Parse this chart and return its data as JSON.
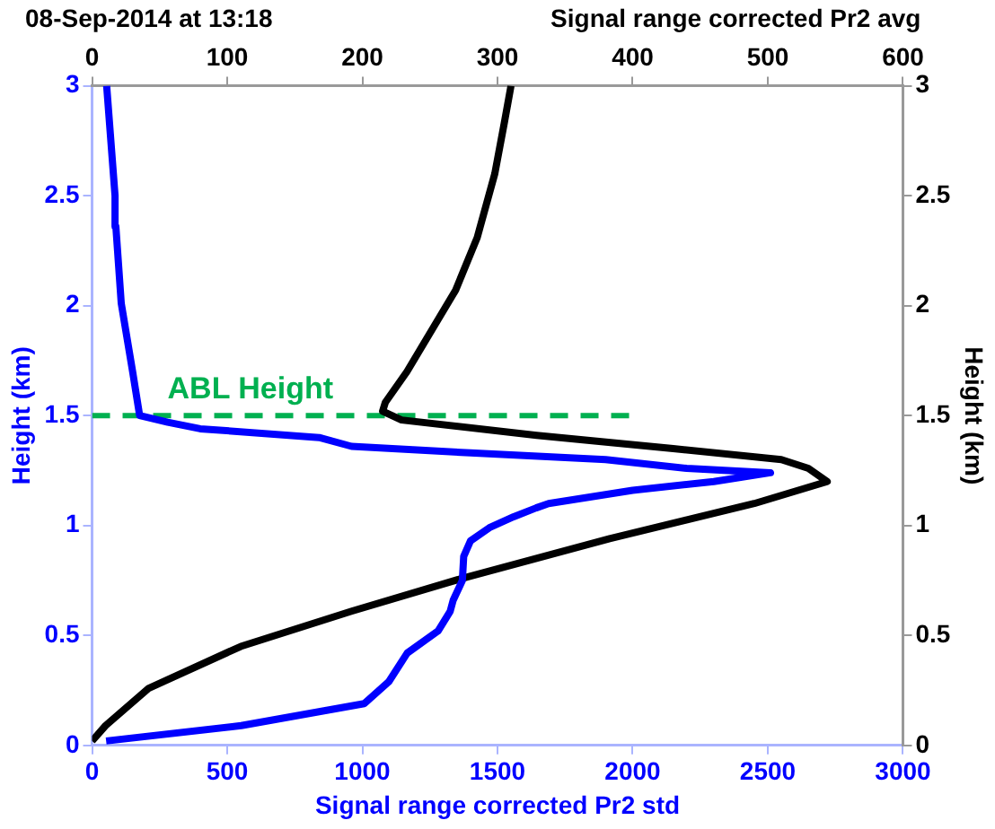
{
  "chart_data": {
    "type": "line",
    "title": "08-Sep-2014 at 13:18",
    "xlabel": "Signal range corrected Pr2 std",
    "x2label": "Signal range corrected Pr2 avg",
    "ylabel": "Height (km)",
    "y2label": "Height (km)",
    "xlim": [
      0,
      3000
    ],
    "xticks": [
      0,
      500,
      1000,
      1500,
      2000,
      2500,
      3000
    ],
    "x2lim": [
      0,
      600
    ],
    "x2ticks": [
      0,
      100,
      200,
      300,
      400,
      500,
      600
    ],
    "ylim": [
      0,
      3
    ],
    "yticks": [
      0,
      0.5,
      1,
      1.5,
      2,
      2.5,
      3
    ],
    "y2lim": [
      0,
      3
    ],
    "y2ticks": [
      0,
      0.5,
      1,
      1.5,
      2,
      2.5,
      3
    ],
    "grid": false,
    "legend": false,
    "marker": "none",
    "line_style": "solid",
    "series": [
      {
        "color": "#0000ff",
        "x": [
          52,
          552,
          1007,
          1098,
          1166,
          1280,
          1325,
          1336,
          1370,
          1375,
          1400,
          1470,
          1560,
          1643,
          1689,
          2000,
          2300,
          2510,
          2200,
          1900,
          1400,
          960,
          840,
          400,
          280,
          176,
          150,
          108,
          88,
          85,
          54
        ],
        "values": [
          0.02,
          0.09,
          0.19,
          0.29,
          0.42,
          0.52,
          0.61,
          0.66,
          0.75,
          0.86,
          0.93,
          0.99,
          1.04,
          1.08,
          1.1,
          1.16,
          1.2,
          1.24,
          1.26,
          1.3,
          1.33,
          1.36,
          1.4,
          1.44,
          1.47,
          1.5,
          1.7,
          2.01,
          2.36,
          2.5,
          3
        ]
      },
      {
        "color": "#000000",
        "axis": "x2",
        "x": [
          0,
          10,
          42,
          110,
          192,
          274,
          383,
          490,
          544,
          530,
          510,
          430,
          329,
          229,
          215,
          217,
          233,
          269,
          285,
          298,
          305,
          310
        ],
        "values": [
          0.02,
          0.09,
          0.26,
          0.45,
          0.61,
          0.76,
          0.94,
          1.1,
          1.2,
          1.26,
          1.3,
          1.35,
          1.41,
          1.48,
          1.52,
          1.56,
          1.7,
          2.07,
          2.31,
          2.6,
          2.83,
          3
        ]
      },
      {
        "name": "ABL Height",
        "type": "line",
        "line_style": "dashed",
        "color": "#00b050",
        "x": [
          0,
          2000
        ],
        "values": [
          1.5,
          1.5
        ]
      }
    ]
  }
}
